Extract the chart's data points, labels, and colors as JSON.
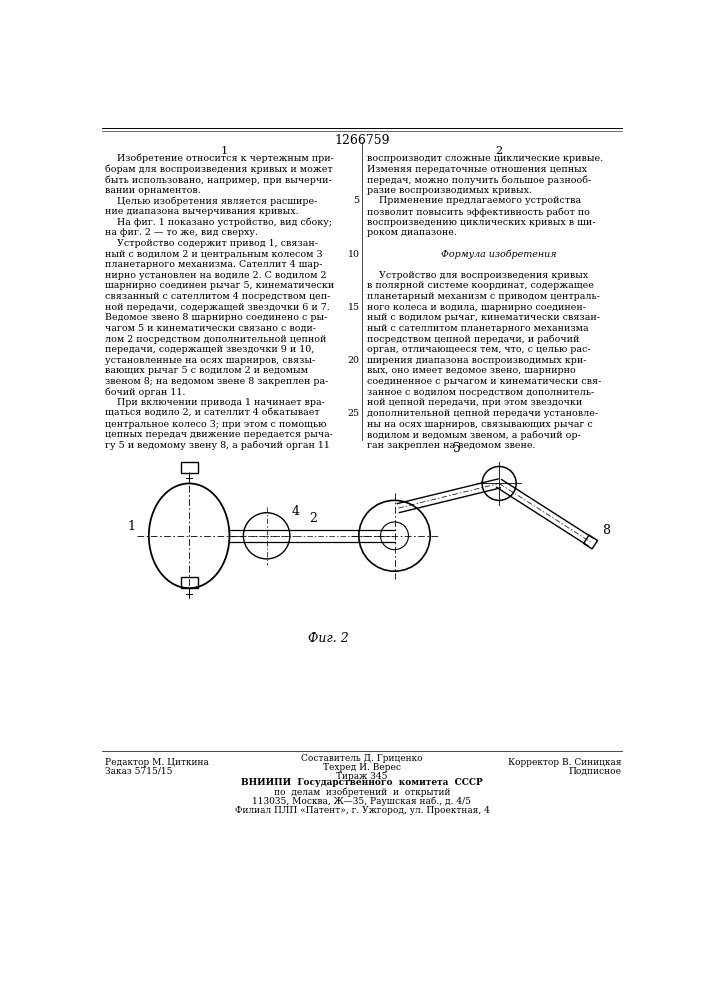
{
  "title": "1266759",
  "col1_number": "1",
  "col2_number": "2",
  "col1_text": [
    "    Изобретение относится к чертежным при-",
    "борам для воспроизведения кривых и может",
    "быть использовано, например, при вычерчи-",
    "вании орнаментов.",
    "    Целью изобретения является расшире-",
    "ние диапазона вычерчивания кривых.",
    "    На фиг. 1 показано устройство, вид сбоку;",
    "на фиг. 2 — то же, вид сверху.",
    "    Устройство содержит привод 1, связан-",
    "ный с водилом 2 и центральным колесом 3",
    "планетарного механизма. Сателлит 4 шар-",
    "нирно установлен на водиле 2. С водилом 2",
    "шарнирно соединен рычаг 5, кинематически",
    "связанный с сателлитом 4 посредством цеп-",
    "ной передачи, содержащей звездочки 6 и 7.",
    "Ведомое звено 8 шарнирно соединено с ры-",
    "чагом 5 и кинематически связано с води-",
    "лом 2 посредством дополнительной цепной",
    "передачи, содержащей звездочки 9 и 10,",
    "установленные на осях шарниров, связы-",
    "вающих рычаг 5 с водилом 2 и ведомым",
    "звеном 8; на ведомом звене 8 закреплен ра-",
    "бочий орган 11.",
    "    При включении привода 1 начинает вра-",
    "щаться водило 2, и сателлит 4 обкатывает",
    "центральное колесо 3; при этом с помощью",
    "цепных передач движение передается рыча-",
    "гу 5 и ведомому звену 8, а рабочий орган 11"
  ],
  "col2_text": [
    "воспроизводит сложные циклические кривые.",
    "Изменяя передаточные отношения цепных",
    "передач, можно получить большое разнооб-",
    "разие воспроизводимых кривых.",
    "    Применение предлагаемого устройства",
    "позволит повысить эффективность работ по",
    "воспроизведению циклических кривых в ши-",
    "роком диапазоне.",
    "",
    "Формула изобретения",
    "",
    "    Устройство для воспроизведения кривых",
    "в полярной системе координат, содержащее",
    "планетарный механизм с приводом централь-",
    "ного колеса и водила, шарнирно соединен-",
    "ный с водилом рычаг, кинематически связан-",
    "ный с сателлитом планетарного механизма",
    "посредством цепной передачи, и рабочий",
    "орган, отличающееся тем, что, с целью рас-",
    "ширения диапазона воспроизводимых кри-",
    "вых, оно имеет ведомое звено, шарнирно",
    "соединенное с рычагом и кинематически свя-",
    "занное с водилом посредством дополнитель-",
    "ной цепной передачи, при этом звездочки",
    "дополнительной цепной передачи установле-",
    "ны на осях шарниров, связывающих рычаг с",
    "водилом и ведомым звеном, а рабочий ор-",
    "ган закреплен на ведомом звене."
  ],
  "line_numbers_col2": [
    "5",
    "10",
    "15",
    "20",
    "25"
  ],
  "line_numbers_rows": [
    4,
    9,
    14,
    19,
    24
  ],
  "footer_left1": "Редактор М. Циткина",
  "footer_left2": "Заказ 5715/15",
  "footer_center1": "Составитель Д. Гриценко",
  "footer_center2": "Техред И. Верес",
  "footer_center3": "Тираж 345",
  "footer_right1": "Корректор В. Синицкая",
  "footer_right2": "Подписное",
  "footer_vniipi1": "ВНИИПИ  Государственного  комитета  СССР",
  "footer_vniipi2": "по  делам  изобретений  и  открытий",
  "footer_vniipi3": "113035, Москва, Ж—35, Раушская наб., д. 4/5",
  "footer_vniipi4": "Филиал ПЛП «Патент», г. Ужгород, ул. Проектная, 4",
  "fig2_caption": "Фиг. 2",
  "bg_color": "#ffffff",
  "text_color": "#000000"
}
